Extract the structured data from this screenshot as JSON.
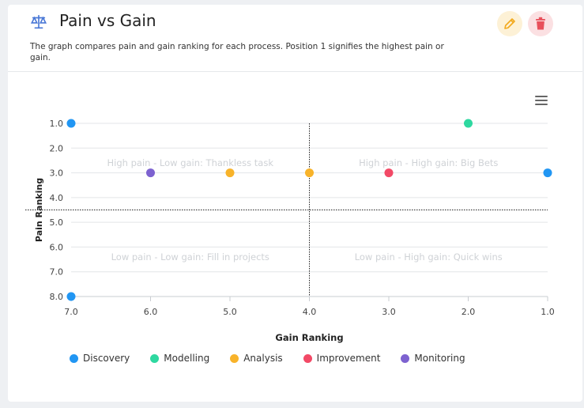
{
  "header": {
    "title": "Pain vs Gain",
    "description": "The graph compares pain and gain ranking for each process. Position 1 signifies the highest pain or gain.",
    "icon": "balance-scale-icon",
    "edit_icon": "pencil-icon",
    "delete_icon": "trash-icon"
  },
  "colors": {
    "accent": "#4a78d6",
    "edit": "#f2a91e",
    "delete": "#e8505b"
  },
  "chart_data": {
    "type": "scatter",
    "xlabel": "Gain Ranking",
    "ylabel": "Pain Ranking",
    "xlim": [
      7.0,
      1.0
    ],
    "ylim": [
      1.0,
      8.0
    ],
    "x_reversed": true,
    "y_reversed": true,
    "x_ticks": [
      "7.0",
      "6.0",
      "5.0",
      "4.0",
      "3.0",
      "2.0",
      "1.0"
    ],
    "y_ticks": [
      "1.0",
      "2.0",
      "3.0",
      "4.0",
      "5.0",
      "6.0",
      "7.0",
      "8.0"
    ],
    "divider_x": 4.0,
    "divider_y": 4.5,
    "grid": true,
    "legend_position": "bottom",
    "quadrants": [
      {
        "label": "High pain - Low gain: Thankless task",
        "x": 5.5,
        "y": 2.6
      },
      {
        "label": "High pain - High gain: Big Bets",
        "x": 2.5,
        "y": 2.6
      },
      {
        "label": "Low pain - Low gain: Fill in projects",
        "x": 5.5,
        "y": 6.4
      },
      {
        "label": "Low pain - High gain: Quick wins",
        "x": 2.5,
        "y": 6.4
      }
    ],
    "series": [
      {
        "name": "Discovery",
        "color": "#2196f3",
        "points": [
          {
            "x": 7.0,
            "y": 1.0
          },
          {
            "x": 1.0,
            "y": 3.0
          },
          {
            "x": 7.0,
            "y": 8.0
          }
        ]
      },
      {
        "name": "Modelling",
        "color": "#2ed8a0",
        "points": [
          {
            "x": 2.0,
            "y": 1.0
          }
        ]
      },
      {
        "name": "Analysis",
        "color": "#f8b32a",
        "points": [
          {
            "x": 5.0,
            "y": 3.0
          },
          {
            "x": 4.0,
            "y": 3.0
          }
        ]
      },
      {
        "name": "Improvement",
        "color": "#f24966",
        "points": [
          {
            "x": 3.0,
            "y": 3.0
          }
        ]
      },
      {
        "name": "Monitoring",
        "color": "#7d62d0",
        "points": [
          {
            "x": 6.0,
            "y": 3.0
          }
        ]
      }
    ]
  }
}
